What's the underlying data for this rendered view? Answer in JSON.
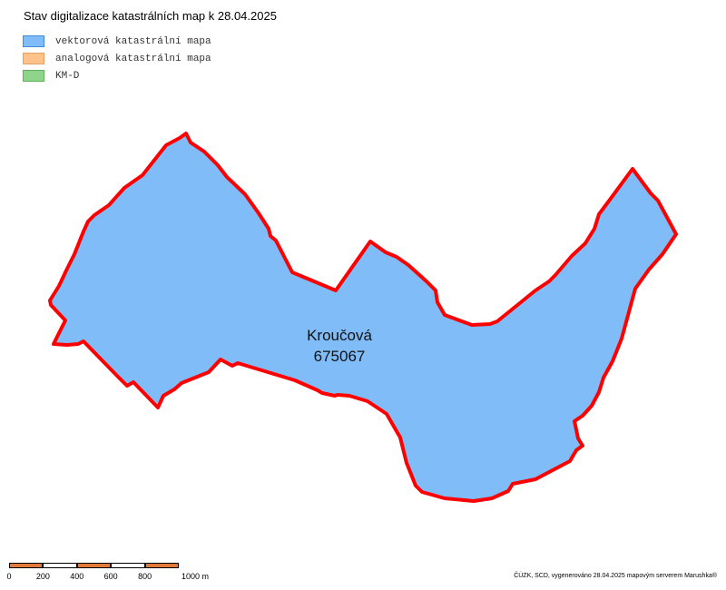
{
  "title": "Stav digitalizace katastrálních map k 28.04.2025",
  "legend": [
    {
      "label": "vektorová katastrální mapa",
      "fill": "#80bdf8",
      "stroke": "#3f8bd9"
    },
    {
      "label": "analogová katastrální mapa",
      "fill": "#ffc28a",
      "stroke": "#e8a060"
    },
    {
      "label": "KM-D",
      "fill": "#8fd48b",
      "stroke": "#5fb25a"
    }
  ],
  "area": {
    "name": "Kroučová",
    "code": "675067",
    "fill": "#80bdf8",
    "border": "#ff0000"
  },
  "scale": {
    "labels": [
      "0",
      "200",
      "400",
      "600",
      "800",
      "1000 m"
    ],
    "colors": [
      "#e07a3a",
      "#ffffff",
      "#e07a3a",
      "#ffffff",
      "#e07a3a"
    ]
  },
  "credit": "ČÚZK, SCD, vygenerováno 28.04.2025 mapovým serverem Marushka®"
}
